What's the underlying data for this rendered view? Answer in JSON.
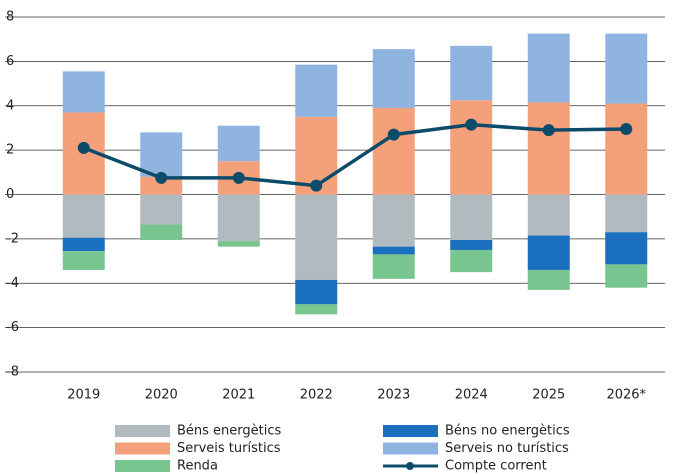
{
  "chart_data": {
    "type": "bar",
    "categories": [
      "2019",
      "2020",
      "2021",
      "2022",
      "2023",
      "2024",
      "2025",
      "2026*"
    ],
    "series": [
      {
        "name": "Béns energètics",
        "color": "#b1babf",
        "values": [
          -1.95,
          -1.35,
          -2.1,
          -3.85,
          -2.35,
          -2.05,
          -1.85,
          -1.7
        ]
      },
      {
        "name": "Béns no energètics",
        "color": "#1b6fbf",
        "values": [
          -0.6,
          0,
          0,
          -1.1,
          -0.35,
          -0.45,
          -1.55,
          -1.45
        ]
      },
      {
        "name": "Serveis turístics",
        "color": "#f4a17b",
        "values": [
          3.7,
          0.8,
          1.5,
          3.5,
          3.9,
          4.25,
          4.15,
          4.1
        ]
      },
      {
        "name": "Serveis no turístics",
        "color": "#8fb4e0",
        "values": [
          1.85,
          2.0,
          1.6,
          2.35,
          2.65,
          2.45,
          3.1,
          3.15
        ]
      },
      {
        "name": "Renda",
        "color": "#79c58f",
        "values": [
          -0.85,
          -0.7,
          -0.25,
          -0.45,
          -1.1,
          -1.0,
          -0.9,
          -1.05
        ]
      },
      {
        "name": "Compte corrent",
        "color": "#0d4b6b",
        "type": "line",
        "values": [
          2.1,
          0.75,
          0.75,
          0.4,
          2.7,
          3.15,
          2.9,
          2.95
        ]
      }
    ],
    "ylim": [
      -8,
      8
    ],
    "yticks": [
      -8,
      -6,
      -4,
      -2,
      0,
      2,
      4,
      6,
      8
    ],
    "grid": true
  }
}
